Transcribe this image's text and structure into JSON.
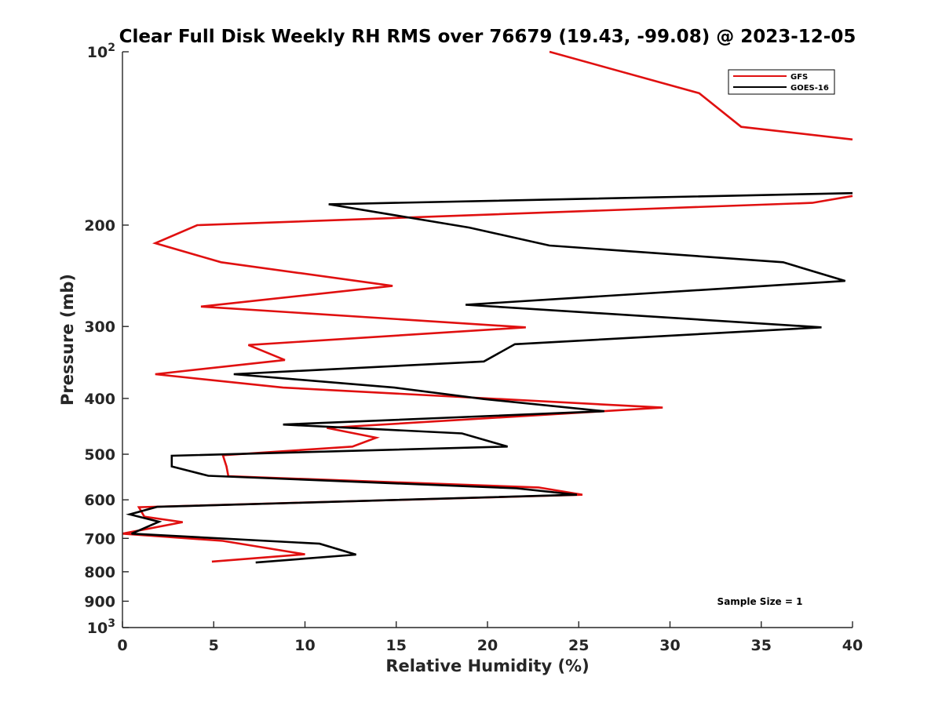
{
  "chart_data": {
    "type": "line",
    "title": "Clear Full Disk Weekly RH RMS over 76679 (19.43, -99.08) @ 2023-12-05",
    "xlabel": "Relative Humidity (%)",
    "ylabel": "Pressure (mb)",
    "xlim": [
      0,
      40
    ],
    "ylim": [
      100,
      1000
    ],
    "y_scale": "log",
    "y_reversed": true,
    "grid": false,
    "legend_position": "top-right",
    "x_ticks": [
      0,
      5,
      10,
      15,
      20,
      25,
      30,
      35,
      40
    ],
    "y_ticks": [
      {
        "value": 100,
        "base": "10",
        "exp": "2"
      },
      {
        "value": 200,
        "label": "200"
      },
      {
        "value": 300,
        "label": "300"
      },
      {
        "value": 400,
        "label": "400"
      },
      {
        "value": 500,
        "label": "500"
      },
      {
        "value": 600,
        "label": "600"
      },
      {
        "value": 700,
        "label": "700"
      },
      {
        "value": 800,
        "label": "800"
      },
      {
        "value": 900,
        "label": "900"
      },
      {
        "value": 1000,
        "base": "10",
        "exp": "3"
      }
    ],
    "series": [
      {
        "name": "GFS",
        "color": "#e01010",
        "points": [
          [
            23.4,
            100
          ],
          [
            31.6,
            118
          ],
          [
            33.9,
            135
          ],
          [
            40.0,
            142
          ],
          [
            null,
            null
          ],
          [
            40.0,
            178
          ],
          [
            37.8,
            183
          ],
          [
            4.1,
            200
          ],
          [
            1.8,
            215
          ],
          [
            5.4,
            232
          ],
          [
            14.8,
            255
          ],
          [
            4.3,
            277
          ],
          [
            22.1,
            301
          ],
          [
            6.9,
            323
          ],
          [
            8.9,
            343
          ],
          [
            1.8,
            363
          ],
          [
            8.8,
            383
          ],
          [
            29.6,
            415
          ],
          [
            11.2,
            450
          ],
          [
            13.9,
            468
          ],
          [
            12.6,
            485
          ],
          [
            5.5,
            502
          ],
          [
            5.7,
            525
          ],
          [
            5.8,
            546
          ],
          [
            22.8,
            571
          ],
          [
            25.2,
            588
          ],
          [
            0.9,
            618
          ],
          [
            1.2,
            642
          ],
          [
            3.3,
            656
          ],
          [
            0.0,
            687
          ],
          [
            5.5,
            707
          ],
          [
            10.0,
            746
          ],
          [
            4.9,
            768
          ]
        ]
      },
      {
        "name": "GOES-16",
        "color": "#000000",
        "points": [
          [
            40.0,
            176
          ],
          [
            11.3,
            184
          ],
          [
            19.0,
            202
          ],
          [
            23.4,
            217
          ],
          [
            36.2,
            232
          ],
          [
            39.6,
            250
          ],
          [
            18.8,
            275
          ],
          [
            38.3,
            301
          ],
          [
            21.5,
            322
          ],
          [
            19.8,
            345
          ],
          [
            6.1,
            363
          ],
          [
            14.9,
            383
          ],
          [
            19.8,
            401
          ],
          [
            26.4,
            421
          ],
          [
            8.8,
            444
          ],
          [
            18.6,
            460
          ],
          [
            21.1,
            485
          ],
          [
            2.7,
            503
          ],
          [
            2.7,
            525
          ],
          [
            4.7,
            545
          ],
          [
            21.6,
            573
          ],
          [
            24.9,
            588
          ],
          [
            1.9,
            617
          ],
          [
            0.4,
            636
          ],
          [
            2.0,
            655
          ],
          [
            0.5,
            687
          ],
          [
            10.8,
            715
          ],
          [
            12.8,
            747
          ],
          [
            7.3,
            771
          ]
        ]
      }
    ],
    "annotations": [
      {
        "text": "Sample Size = 1",
        "position": "bottom-right"
      }
    ]
  }
}
